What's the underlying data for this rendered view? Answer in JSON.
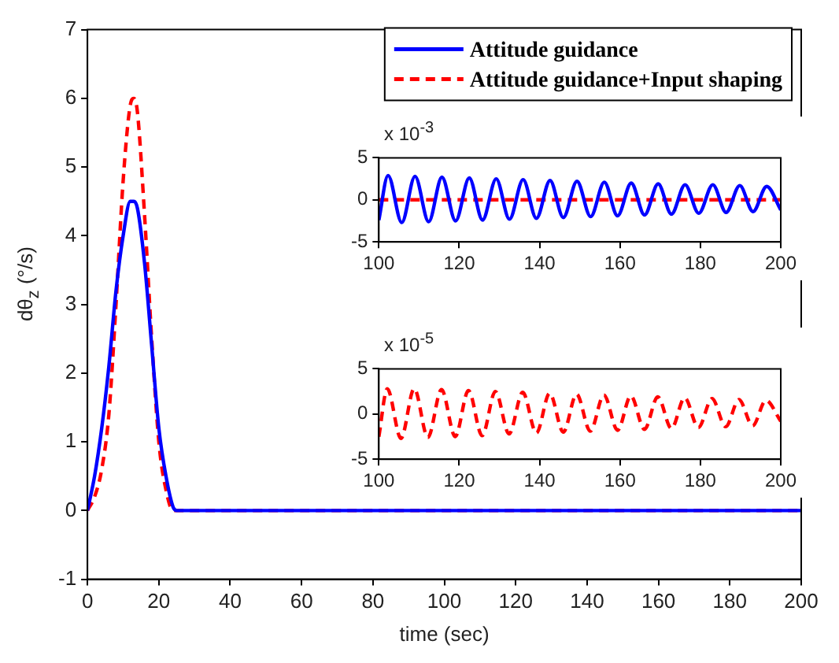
{
  "chart_data": [
    {
      "type": "line",
      "xlabel": "time (sec)",
      "ylabel": "dθ$_{z}$ (°/s)",
      "xlim": [
        0,
        200
      ],
      "xticks": [
        0,
        20,
        40,
        60,
        80,
        100,
        120,
        140,
        160,
        180,
        200
      ],
      "ylim": [
        -1,
        7
      ],
      "yticks": [
        -1,
        0,
        1,
        2,
        3,
        4,
        5,
        6,
        7
      ],
      "legend": "top right",
      "series": [
        {
          "name": "Attitude guidance",
          "color": "#0000ff",
          "line_style": "solid",
          "x": [
            0,
            2,
            4,
            6,
            8,
            10,
            12,
            13,
            14,
            16,
            18,
            20,
            22,
            24,
            25,
            26,
            200
          ],
          "values": [
            0,
            0.5,
            1.2,
            2.1,
            3.2,
            4.0,
            4.5,
            4.5,
            4.4,
            3.6,
            2.4,
            1.2,
            0.5,
            0.05,
            0,
            0,
            0
          ]
        },
        {
          "name": "Attitude guidance+Input shaping",
          "color": "#ff0000",
          "line_style": "dashed",
          "x": [
            0,
            2,
            4,
            6,
            8,
            10,
            12,
            13,
            14,
            16,
            18,
            20,
            22,
            24,
            200
          ],
          "values": [
            0,
            0.2,
            0.6,
            1.4,
            3.0,
            4.8,
            5.9,
            6.0,
            5.8,
            4.3,
            2.5,
            1.0,
            0.3,
            0,
            0
          ]
        }
      ]
    },
    {
      "type": "line",
      "annotations": [
        "x 10$^{-3}$"
      ],
      "xlim": [
        100,
        200
      ],
      "xticks": [
        100,
        120,
        140,
        160,
        180,
        200
      ],
      "ylim": [
        -5,
        5
      ],
      "yticks": [
        -5,
        0,
        5
      ],
      "series": [
        {
          "color": "#0000ff",
          "line_style": "solid",
          "x": [
            100,
            102.3,
            105.7,
            109.0,
            112.4,
            115.7,
            119.1,
            122.5,
            125.8,
            129.2,
            132.5,
            135.9,
            139.2,
            142.6,
            145.9,
            149.3,
            152.7,
            156.1,
            159.4,
            162.8,
            166.1,
            169.5,
            172.8,
            176.2,
            179.6,
            183.1,
            186.4,
            189.8,
            193.1,
            196.5,
            200
          ],
          "values": [
            -2.4,
            2.9,
            -2.7,
            2.8,
            -2.6,
            2.7,
            -2.5,
            2.6,
            -2.4,
            2.5,
            -2.3,
            2.4,
            -2.2,
            2.3,
            -2.1,
            2.2,
            -2.0,
            2.1,
            -1.9,
            2.0,
            -1.8,
            1.9,
            -1.7,
            1.8,
            -1.6,
            1.8,
            -1.5,
            1.7,
            -1.4,
            1.6,
            -1.2
          ]
        },
        {
          "color": "#ff0000",
          "line_style": "dashed",
          "x": [
            100,
            200
          ],
          "values": [
            0,
            0
          ]
        }
      ]
    },
    {
      "type": "line",
      "annotations": [
        "x 10$^{-5}$"
      ],
      "xlim": [
        100,
        200
      ],
      "xticks": [
        100,
        120,
        140,
        160,
        180,
        200
      ],
      "ylim": [
        -5,
        5
      ],
      "yticks": [
        -5,
        0,
        5
      ],
      "series": [
        {
          "color": "#ff0000",
          "line_style": "dashed",
          "x": [
            100,
            102.1,
            105.5,
            108.8,
            112.2,
            115.6,
            119.0,
            122.3,
            125.7,
            129.0,
            132.4,
            135.8,
            139.2,
            142.5,
            145.9,
            149.2,
            152.6,
            156.0,
            159.4,
            162.7,
            166.1,
            169.4,
            172.8,
            176.1,
            179.5,
            182.9,
            186.3,
            189.6,
            193.0,
            196.3,
            200
          ],
          "values": [
            -2.5,
            2.8,
            -2.7,
            2.8,
            -2.6,
            2.7,
            -2.5,
            2.6,
            -2.4,
            2.5,
            -2.2,
            2.4,
            -2.1,
            2.3,
            -2.0,
            2.2,
            -1.9,
            2.1,
            -1.8,
            2.0,
            -1.7,
            1.9,
            -1.6,
            1.8,
            -1.5,
            1.7,
            -1.4,
            1.6,
            -1.3,
            1.5,
            -0.8
          ]
        }
      ]
    }
  ]
}
